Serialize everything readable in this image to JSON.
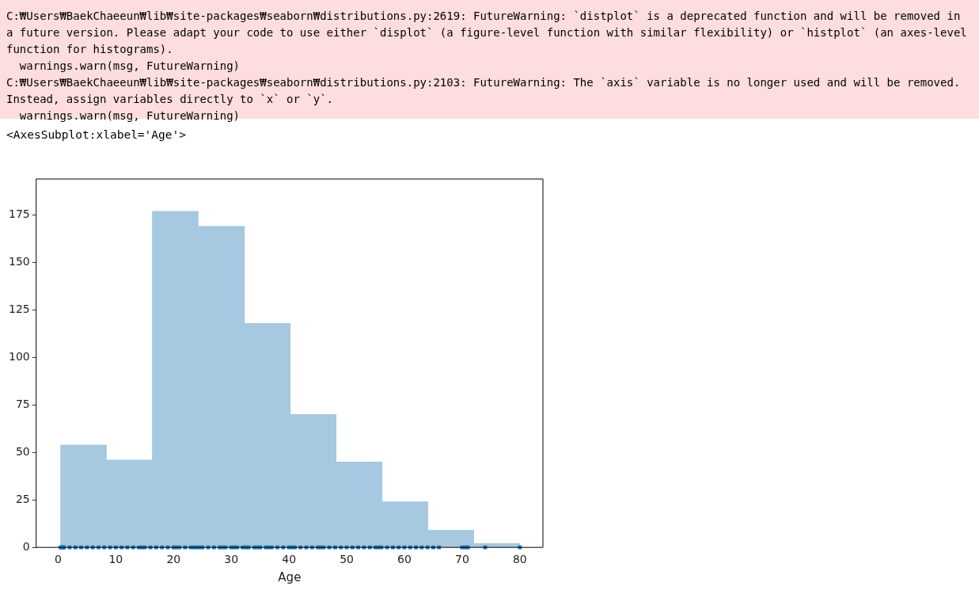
{
  "chart_data": {
    "type": "histogram",
    "annotations": [
      "C:₩Users₩BaekChaeeun₩lib₩site-packages₩seaborn₩distributions.py:2619: FutureWarning: `distplot` is a deprecated function and will be removed in a future version. Please adapt your code to use either `displot` (a figure-level function with similar flexibility) or `histplot` (an axes-level function for histograms).\n  warnings.warn(msg, FutureWarning)\nC:₩Users₩BaekChaeeun₩lib₩site-packages₩seaborn₩distributions.py:2103: FutureWarning: The `axis` variable is no longer used and will be removed. Instead, assign variables directly to `x` or `y`.\n  warnings.warn(msg, FutureWarning)",
      "<AxesSubplot:xlabel='Age'>"
    ],
    "xlabel": "Age",
    "bins": [
      0.4,
      8.4,
      16.3,
      24.3,
      32.3,
      40.2,
      48.2,
      56.1,
      64.1,
      72.0,
      80
    ],
    "values": [
      54,
      46,
      177,
      169,
      118,
      70,
      45,
      24,
      9,
      2
    ],
    "color": "#a6c8e0",
    "series": [
      {
        "type": "scatter",
        "color": "#1f77b4",
        "marker": "square",
        "x": [
          0.42,
          0.67,
          0.75,
          0.83,
          0.92,
          1,
          2,
          3,
          4,
          5,
          6,
          7,
          8,
          9,
          10,
          11,
          12,
          13,
          14,
          14.5,
          15,
          16,
          17,
          18,
          19,
          20,
          20.5,
          21,
          22,
          23,
          23.5,
          24,
          24.5,
          25,
          26,
          27,
          28,
          28.5,
          29,
          30,
          30.5,
          31,
          32,
          32.5,
          33,
          34,
          34.5,
          35,
          36,
          36.5,
          37,
          38,
          39,
          40,
          40.5,
          41,
          42,
          43,
          44,
          45,
          45.5,
          46,
          47,
          48,
          49,
          50,
          51,
          52,
          53,
          54,
          55,
          55.5,
          56,
          57,
          58,
          59,
          60,
          61,
          62,
          63,
          64,
          65,
          66,
          70,
          70.5,
          71,
          74,
          80
        ],
        "values": [
          0,
          0,
          0,
          0,
          0,
          0,
          0,
          0,
          0,
          0,
          0,
          0,
          0,
          0,
          0,
          0,
          0,
          0,
          0,
          0,
          0,
          0,
          0,
          0,
          0,
          0,
          0,
          0,
          0,
          0,
          0,
          0,
          0,
          0,
          0,
          0,
          0,
          0,
          0,
          0,
          0,
          0,
          0,
          0,
          0,
          0,
          0,
          0,
          0,
          0,
          0,
          0,
          0,
          0,
          0,
          0,
          0,
          0,
          0,
          0,
          0,
          0,
          0,
          0,
          0,
          0,
          0,
          0,
          0,
          0,
          0,
          0,
          0,
          0,
          0,
          0,
          0,
          0,
          0,
          0,
          0,
          0,
          0,
          0,
          0,
          0,
          0,
          0
        ]
      }
    ],
    "xlim": [
      -3.8,
      84
    ],
    "ylim": [
      0,
      194
    ],
    "xticks": [
      0,
      10,
      20,
      30,
      40,
      50,
      60,
      70,
      80
    ],
    "yticks": [
      0,
      25,
      50,
      75,
      100,
      125,
      150,
      175
    ],
    "grid": false,
    "legend": false
  }
}
